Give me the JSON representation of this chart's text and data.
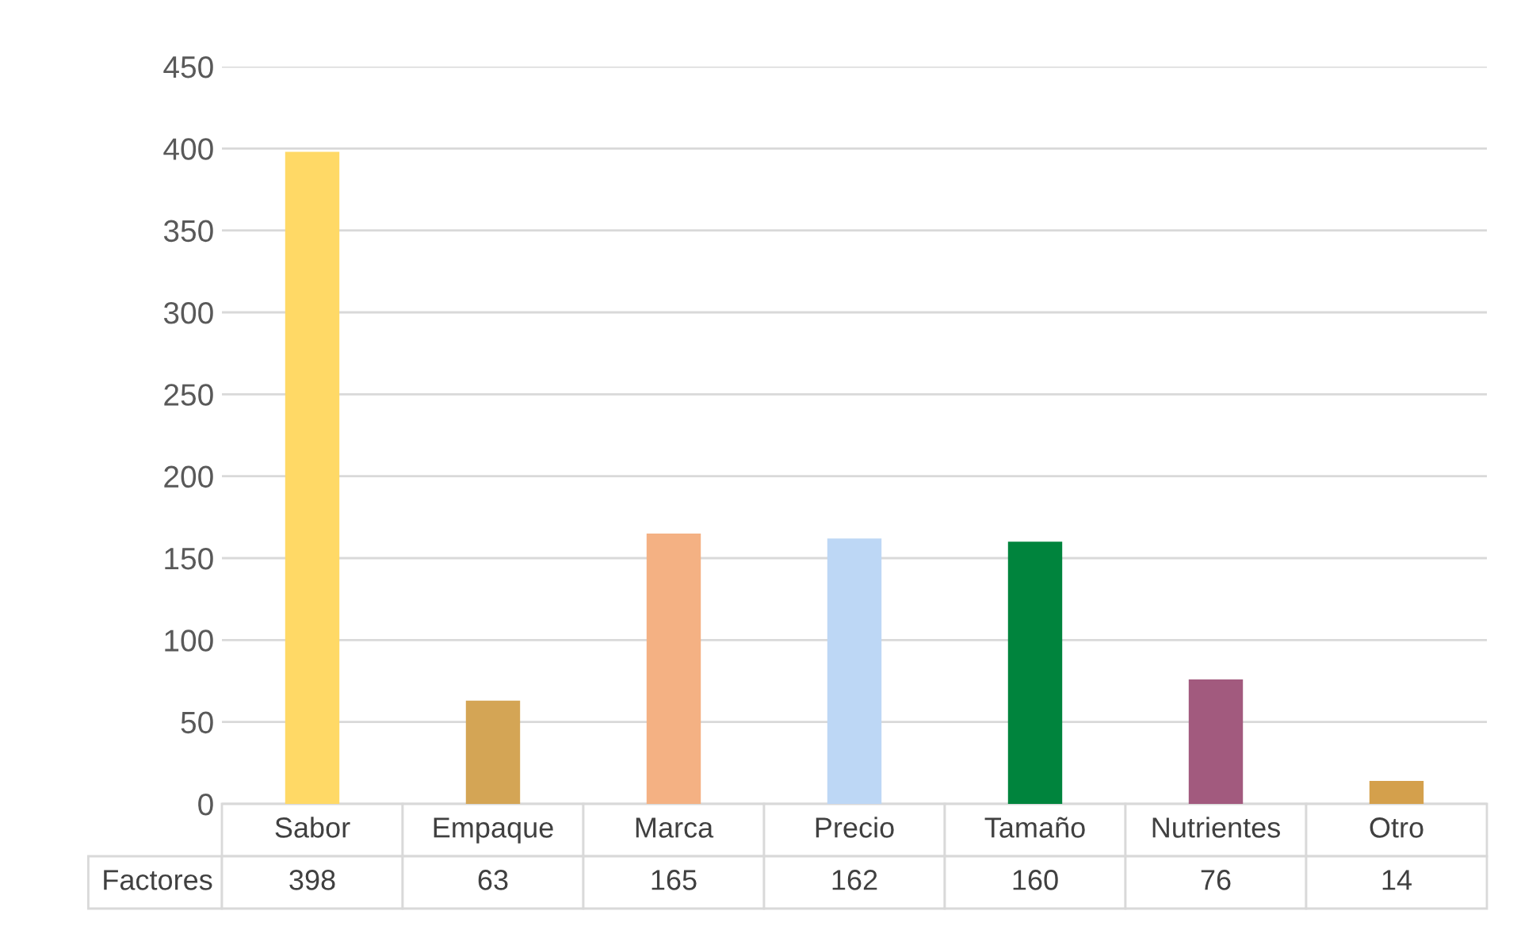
{
  "chart_data": {
    "type": "bar",
    "categories": [
      "Sabor",
      "Empaque",
      "Marca",
      "Precio",
      "Tamaño",
      "Nutrientes",
      "Otro"
    ],
    "series": [
      {
        "name": "Factores",
        "values": [
          398,
          63,
          165,
          162,
          160,
          76,
          14
        ],
        "colors": [
          "#ffd966",
          "#d4a555",
          "#f4b183",
          "#bdd7f5",
          "#00843d",
          "#a25a7e",
          "#d4a04c"
        ]
      }
    ],
    "ylim": [
      0,
      450
    ],
    "yticks": [
      0,
      50,
      100,
      150,
      200,
      250,
      300,
      350,
      400,
      450
    ],
    "grid": "y",
    "data_labels": true
  }
}
